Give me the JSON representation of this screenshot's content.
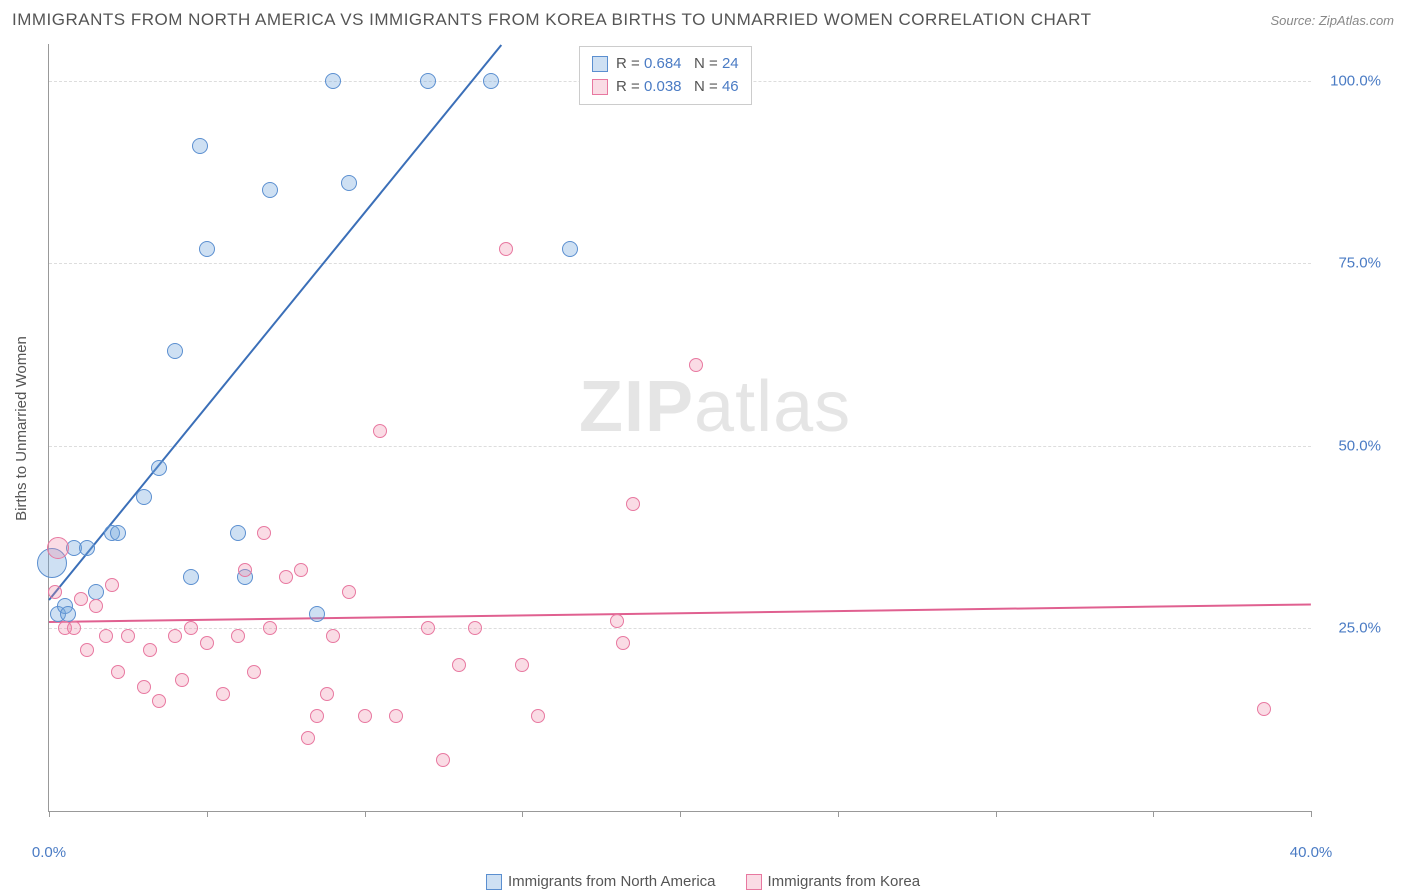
{
  "title": "IMMIGRANTS FROM NORTH AMERICA VS IMMIGRANTS FROM KOREA BIRTHS TO UNMARRIED WOMEN CORRELATION CHART",
  "source": "Source: ZipAtlas.com",
  "y_axis_label": "Births to Unmarried Women",
  "watermark_bold": "ZIP",
  "watermark_rest": "atlas",
  "chart": {
    "type": "scatter",
    "xlim": [
      0,
      40
    ],
    "ylim": [
      0,
      105
    ],
    "x_ticks": [
      0,
      5,
      10,
      15,
      20,
      25,
      30,
      35,
      40
    ],
    "x_tick_labels": {
      "0": "0.0%",
      "40": "40.0%"
    },
    "y_gridlines": [
      25,
      50,
      75,
      100
    ],
    "y_tick_labels": {
      "25": "25.0%",
      "50": "50.0%",
      "75": "75.0%",
      "100": "100.0%"
    },
    "background_color": "#ffffff",
    "grid_color": "#dddddd",
    "axis_color": "#999999",
    "tick_label_color": "#4a7bc4",
    "series": [
      {
        "name": "Immigrants from North America",
        "fill_color": "rgba(115,165,220,0.35)",
        "stroke_color": "#5b8fd0",
        "marker_size": 16,
        "trend": {
          "slope": 5.3,
          "intercept": 29,
          "color": "#3b6fb8",
          "width": 2
        },
        "R": 0.684,
        "N": 24,
        "points": [
          {
            "x": 0.1,
            "y": 34,
            "size": 30
          },
          {
            "x": 0.3,
            "y": 27
          },
          {
            "x": 0.5,
            "y": 28
          },
          {
            "x": 0.6,
            "y": 27
          },
          {
            "x": 0.8,
            "y": 36
          },
          {
            "x": 1.2,
            "y": 36
          },
          {
            "x": 1.5,
            "y": 30
          },
          {
            "x": 2.0,
            "y": 38
          },
          {
            "x": 2.2,
            "y": 38
          },
          {
            "x": 3.0,
            "y": 43
          },
          {
            "x": 3.5,
            "y": 47
          },
          {
            "x": 4.0,
            "y": 63
          },
          {
            "x": 4.5,
            "y": 32
          },
          {
            "x": 4.8,
            "y": 91
          },
          {
            "x": 5.0,
            "y": 77
          },
          {
            "x": 6.0,
            "y": 38
          },
          {
            "x": 6.2,
            "y": 32
          },
          {
            "x": 7.0,
            "y": 85
          },
          {
            "x": 8.5,
            "y": 27
          },
          {
            "x": 9.0,
            "y": 100
          },
          {
            "x": 9.5,
            "y": 86
          },
          {
            "x": 12.0,
            "y": 100
          },
          {
            "x": 14.0,
            "y": 100
          },
          {
            "x": 16.5,
            "y": 77
          }
        ]
      },
      {
        "name": "Immigrants from Korea",
        "fill_color": "rgba(240,140,170,0.3)",
        "stroke_color": "#e878a0",
        "marker_size": 14,
        "trend": {
          "slope": 0.06,
          "intercept": 26,
          "color": "#e06090",
          "width": 2
        },
        "R": 0.038,
        "N": 46,
        "points": [
          {
            "x": 0.2,
            "y": 30
          },
          {
            "x": 0.3,
            "y": 36,
            "size": 22
          },
          {
            "x": 0.5,
            "y": 25
          },
          {
            "x": 0.8,
            "y": 25
          },
          {
            "x": 1.0,
            "y": 29
          },
          {
            "x": 1.2,
            "y": 22
          },
          {
            "x": 1.5,
            "y": 28
          },
          {
            "x": 1.8,
            "y": 24
          },
          {
            "x": 2.0,
            "y": 31
          },
          {
            "x": 2.2,
            "y": 19
          },
          {
            "x": 2.5,
            "y": 24
          },
          {
            "x": 3.0,
            "y": 17
          },
          {
            "x": 3.2,
            "y": 22
          },
          {
            "x": 3.5,
            "y": 15
          },
          {
            "x": 4.0,
            "y": 24
          },
          {
            "x": 4.2,
            "y": 18
          },
          {
            "x": 4.5,
            "y": 25
          },
          {
            "x": 5.0,
            "y": 23
          },
          {
            "x": 5.5,
            "y": 16
          },
          {
            "x": 6.0,
            "y": 24
          },
          {
            "x": 6.2,
            "y": 33
          },
          {
            "x": 6.5,
            "y": 19
          },
          {
            "x": 6.8,
            "y": 38
          },
          {
            "x": 7.0,
            "y": 25
          },
          {
            "x": 7.5,
            "y": 32
          },
          {
            "x": 8.0,
            "y": 33
          },
          {
            "x": 8.2,
            "y": 10
          },
          {
            "x": 8.5,
            "y": 13
          },
          {
            "x": 8.8,
            "y": 16
          },
          {
            "x": 9.0,
            "y": 24
          },
          {
            "x": 9.5,
            "y": 30
          },
          {
            "x": 10.0,
            "y": 13
          },
          {
            "x": 10.5,
            "y": 52
          },
          {
            "x": 11.0,
            "y": 13
          },
          {
            "x": 12.0,
            "y": 25
          },
          {
            "x": 12.5,
            "y": 7
          },
          {
            "x": 13.0,
            "y": 20
          },
          {
            "x": 13.5,
            "y": 25
          },
          {
            "x": 14.5,
            "y": 77
          },
          {
            "x": 15.0,
            "y": 20
          },
          {
            "x": 15.5,
            "y": 13
          },
          {
            "x": 18.0,
            "y": 26
          },
          {
            "x": 18.2,
            "y": 23
          },
          {
            "x": 18.5,
            "y": 42
          },
          {
            "x": 20.5,
            "y": 61
          },
          {
            "x": 38.5,
            "y": 14
          }
        ]
      }
    ]
  },
  "legend_stats": {
    "labels": {
      "R": "R =",
      "N": "N ="
    }
  },
  "bottom_legend": [
    {
      "label": "Immigrants from North America",
      "fill": "rgba(115,165,220,0.35)",
      "stroke": "#5b8fd0"
    },
    {
      "label": "Immigrants from Korea",
      "fill": "rgba(240,140,170,0.3)",
      "stroke": "#e878a0"
    }
  ]
}
